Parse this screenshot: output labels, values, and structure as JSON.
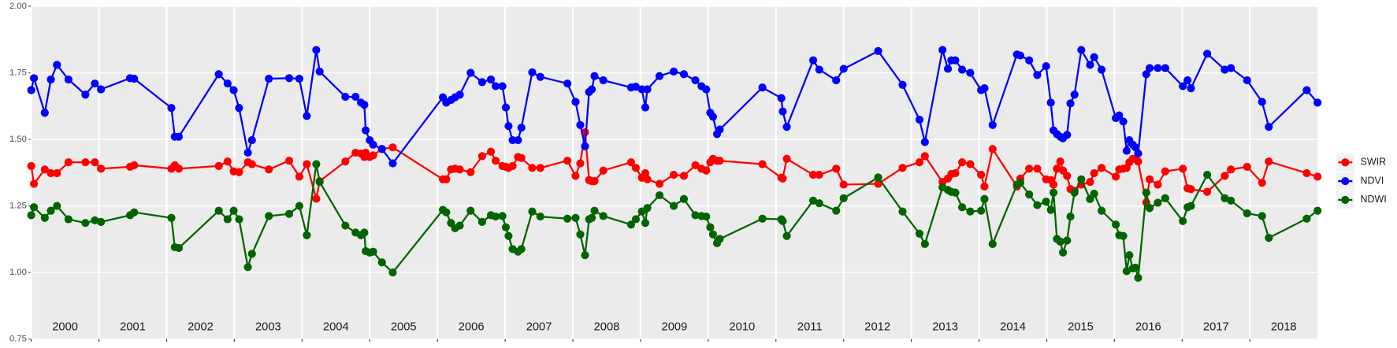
{
  "chart_data": {
    "type": "line",
    "x": [
      2000.0,
      2000.04,
      2000.2,
      2000.29,
      2000.38,
      2000.55,
      2000.8,
      2000.94,
      2001.03,
      2001.46,
      2001.52,
      2002.07,
      2002.12,
      2002.18,
      2002.77,
      2002.9,
      2002.99,
      2003.07,
      2003.2,
      2003.26,
      2003.51,
      2003.81,
      2003.96,
      2004.07,
      2004.21,
      2004.26,
      2004.64,
      2004.79,
      2004.87,
      2004.92,
      2004.94,
      2005.0,
      2005.05,
      2005.18,
      2005.34,
      2006.08,
      2006.13,
      2006.2,
      2006.26,
      2006.33,
      2006.49,
      2006.66,
      2006.79,
      2006.86,
      2006.96,
      2007.01,
      2007.05,
      2007.11,
      2007.19,
      2007.24,
      2007.4,
      2007.52,
      2007.92,
      2008.04,
      2008.11,
      2008.18,
      2008.24,
      2008.28,
      2008.32,
      2008.45,
      2008.86,
      2008.93,
      2009.02,
      2009.07,
      2009.1,
      2009.28,
      2009.49,
      2009.64,
      2009.81,
      2009.9,
      2009.97,
      2010.03,
      2010.07,
      2010.13,
      2010.17,
      2010.8,
      2011.08,
      2011.1,
      2011.16,
      2011.55,
      2011.64,
      2011.89,
      2012.0,
      2012.51,
      2012.87,
      2013.12,
      2013.2,
      2013.46,
      2013.54,
      2013.59,
      2013.65,
      2013.75,
      2013.87,
      2014.03,
      2014.08,
      2014.2,
      2014.56,
      2014.61,
      2014.74,
      2014.86,
      2014.99,
      2015.06,
      2015.1,
      2015.15,
      2015.2,
      2015.24,
      2015.3,
      2015.35,
      2015.41,
      2015.51,
      2015.64,
      2015.7,
      2015.81,
      2016.02,
      2016.07,
      2016.13,
      2016.18,
      2016.22,
      2016.27,
      2016.31,
      2016.35,
      2016.47,
      2016.52,
      2016.64,
      2016.75,
      2017.01,
      2017.08,
      2017.13,
      2017.37,
      2017.63,
      2017.72,
      2017.96,
      2018.18,
      2018.28,
      2018.84,
      2019.0
    ],
    "series": [
      {
        "name": "SWIR",
        "color": "#ff0000",
        "values": [
          1.4,
          1.333,
          1.387,
          1.373,
          1.373,
          1.414,
          1.414,
          1.414,
          1.39,
          1.397,
          1.403,
          1.39,
          1.403,
          1.39,
          1.4,
          1.417,
          1.38,
          1.377,
          1.414,
          1.407,
          1.387,
          1.42,
          1.36,
          1.407,
          1.277,
          1.343,
          1.417,
          1.45,
          1.447,
          1.434,
          1.45,
          1.434,
          1.44,
          1.464,
          1.47,
          1.35,
          1.35,
          1.387,
          1.39,
          1.387,
          1.377,
          1.437,
          1.454,
          1.42,
          1.4,
          1.397,
          1.393,
          1.4,
          1.434,
          1.43,
          1.393,
          1.393,
          1.42,
          1.363,
          1.41,
          1.527,
          1.347,
          1.343,
          1.343,
          1.383,
          1.414,
          1.393,
          1.356,
          1.373,
          1.35,
          1.333,
          1.367,
          1.363,
          1.403,
          1.39,
          1.383,
          1.414,
          1.427,
          1.42,
          1.42,
          1.407,
          1.356,
          1.353,
          1.427,
          1.367,
          1.367,
          1.39,
          1.33,
          1.333,
          1.393,
          1.414,
          1.437,
          1.34,
          1.353,
          1.37,
          1.373,
          1.414,
          1.407,
          1.367,
          1.323,
          1.464,
          1.323,
          1.353,
          1.39,
          1.39,
          1.35,
          1.347,
          1.33,
          1.39,
          1.417,
          1.383,
          1.363,
          1.313,
          1.307,
          1.33,
          1.34,
          1.373,
          1.393,
          1.36,
          1.387,
          1.39,
          1.393,
          1.414,
          1.427,
          1.427,
          1.417,
          1.263,
          1.35,
          1.33,
          1.38,
          1.39,
          1.316,
          1.313,
          1.303,
          1.363,
          1.387,
          1.397,
          1.337,
          1.417,
          1.373,
          1.36
        ]
      },
      {
        "name": "NDVI",
        "color": "#0000ff",
        "values": [
          1.685,
          1.73,
          1.6,
          1.725,
          1.78,
          1.725,
          1.668,
          1.71,
          1.688,
          1.73,
          1.728,
          1.618,
          1.51,
          1.51,
          1.745,
          1.71,
          1.685,
          1.618,
          1.45,
          1.497,
          1.728,
          1.73,
          1.728,
          1.588,
          1.836,
          1.755,
          1.66,
          1.66,
          1.638,
          1.63,
          1.534,
          1.497,
          1.48,
          1.464,
          1.41,
          1.658,
          1.638,
          1.648,
          1.658,
          1.668,
          1.75,
          1.715,
          1.725,
          1.7,
          1.7,
          1.62,
          1.55,
          1.497,
          1.497,
          1.544,
          1.752,
          1.735,
          1.71,
          1.641,
          1.554,
          1.474,
          1.678,
          1.688,
          1.738,
          1.722,
          1.695,
          1.698,
          1.688,
          1.62,
          1.688,
          1.738,
          1.755,
          1.745,
          1.722,
          1.7,
          1.688,
          1.6,
          1.585,
          1.52,
          1.537,
          1.695,
          1.655,
          1.605,
          1.547,
          1.797,
          1.762,
          1.722,
          1.765,
          1.832,
          1.705,
          1.574,
          1.49,
          1.836,
          1.765,
          1.797,
          1.797,
          1.762,
          1.75,
          1.685,
          1.692,
          1.554,
          1.819,
          1.815,
          1.797,
          1.742,
          1.775,
          1.638,
          1.534,
          1.52,
          1.51,
          1.504,
          1.517,
          1.635,
          1.668,
          1.836,
          1.78,
          1.809,
          1.762,
          1.58,
          1.59,
          1.567,
          1.457,
          1.497,
          1.48,
          1.47,
          1.447,
          1.745,
          1.768,
          1.768,
          1.768,
          1.7,
          1.722,
          1.692,
          1.822,
          1.762,
          1.768,
          1.722,
          1.641,
          1.547,
          1.685,
          1.638
        ]
      },
      {
        "name": "NDWI",
        "color": "#006400",
        "values": [
          1.215,
          1.245,
          1.205,
          1.232,
          1.25,
          1.2,
          1.186,
          1.196,
          1.19,
          1.215,
          1.226,
          1.205,
          1.095,
          1.092,
          1.232,
          1.2,
          1.232,
          1.2,
          1.02,
          1.07,
          1.212,
          1.22,
          1.25,
          1.14,
          1.407,
          1.34,
          1.176,
          1.15,
          1.14,
          1.15,
          1.08,
          1.075,
          1.078,
          1.038,
          1.0,
          1.235,
          1.226,
          1.186,
          1.166,
          1.176,
          1.232,
          1.19,
          1.215,
          1.21,
          1.212,
          1.17,
          1.137,
          1.088,
          1.078,
          1.088,
          1.229,
          1.21,
          1.202,
          1.205,
          1.143,
          1.065,
          1.2,
          1.205,
          1.232,
          1.212,
          1.18,
          1.2,
          1.229,
          1.186,
          1.242,
          1.29,
          1.25,
          1.276,
          1.215,
          1.212,
          1.21,
          1.17,
          1.143,
          1.11,
          1.126,
          1.202,
          1.2,
          1.193,
          1.137,
          1.27,
          1.26,
          1.232,
          1.279,
          1.357,
          1.229,
          1.146,
          1.107,
          1.32,
          1.31,
          1.303,
          1.3,
          1.245,
          1.229,
          1.232,
          1.276,
          1.107,
          1.33,
          1.337,
          1.293,
          1.253,
          1.266,
          1.235,
          1.3,
          1.126,
          1.116,
          1.075,
          1.12,
          1.21,
          1.3,
          1.35,
          1.276,
          1.296,
          1.232,
          1.18,
          1.14,
          1.137,
          1.005,
          1.065,
          1.015,
          1.018,
          0.98,
          1.3,
          1.242,
          1.262,
          1.279,
          1.193,
          1.245,
          1.25,
          1.367,
          1.279,
          1.27,
          1.222,
          1.212,
          1.13,
          1.202,
          1.232
        ]
      }
    ],
    "xlim": [
      2000,
      2019
    ],
    "xticks": [
      2000,
      2001,
      2002,
      2003,
      2004,
      2005,
      2006,
      2007,
      2008,
      2009,
      2010,
      2011,
      2012,
      2013,
      2014,
      2015,
      2016,
      2017,
      2018
    ],
    "ylim": [
      0.75,
      2.0
    ],
    "yticks": [
      {
        "value": 0.75,
        "label": "0.75"
      },
      {
        "value": 1.0,
        "label": "1.00"
      },
      1.25,
      {
        "value": 1.5,
        "label": "1.50"
      },
      1.75,
      {
        "value": 2.0,
        "label": "2.00"
      }
    ],
    "grid": true,
    "legend": "right"
  }
}
